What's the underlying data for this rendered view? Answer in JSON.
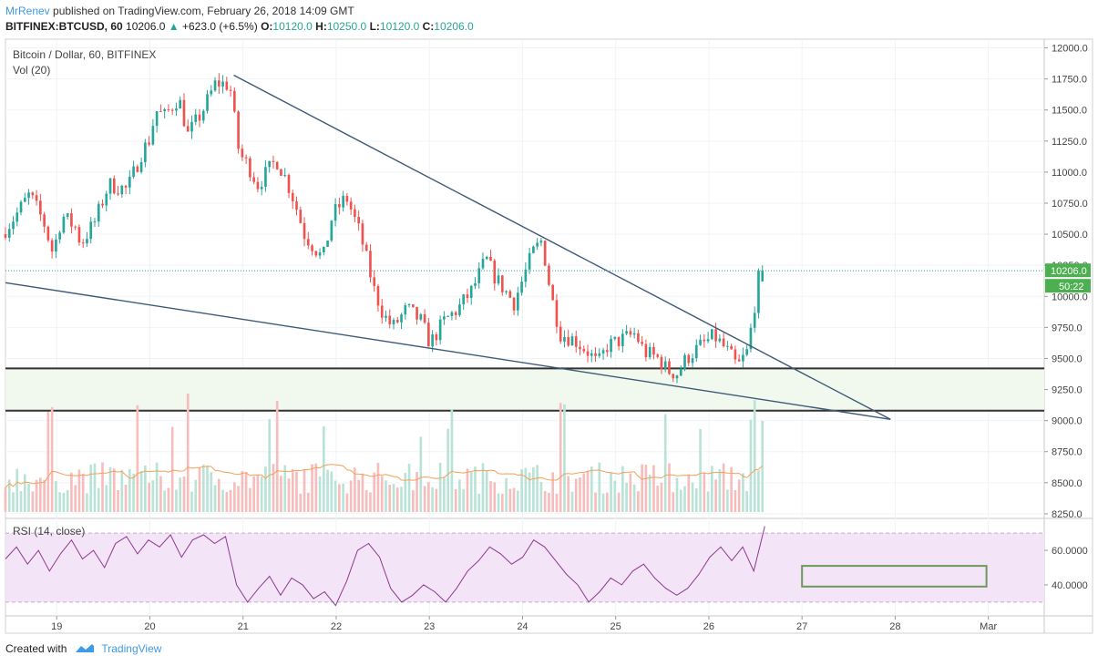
{
  "header": {
    "author": "MrRenev",
    "published_text": "published on TradingView.com, February 26, 2018 14:09 GMT",
    "symbol": "BITFINEX:BTCUSD, 60",
    "last": "10206.0",
    "change": "+623.0 (+6.5%)",
    "o_label": "O:",
    "o": "10120.0",
    "h_label": "H:",
    "h": "10250.0",
    "l_label": "L:",
    "l": "10120.0",
    "c_label": "C:",
    "c": "10206.0"
  },
  "footer": {
    "created_with": "Created with",
    "brand": "TradingView"
  },
  "colors": {
    "up": "#26a69a",
    "down": "#ef5350",
    "trendline": "#3c5a78",
    "support": "#333333",
    "zone": "#f1f8ee",
    "rsi_line": "#8e3a8e",
    "rsi_band": "#f3e4f7",
    "volume_ma": "#f5a05a",
    "price_badge": "#4caf50"
  },
  "chart_data": [
    {
      "type": "candlestick",
      "title": "Bitcoin / Dollar, 60, BITFINEX",
      "subtitle": "Vol (20)",
      "y_ticks": [
        8250,
        8500,
        8750,
        9000,
        9250,
        9500,
        9750,
        10000,
        10250,
        10500,
        10750,
        11000,
        11250,
        11500,
        11750,
        12000
      ],
      "y_tick_labels": [
        "8250.0",
        "8500.0",
        "8750.0",
        "9000.0",
        "9250.0",
        "9500.0",
        "9750.0",
        "10000.0",
        "10250.0",
        "10500.0",
        "10750.0",
        "11000.0",
        "11250.0",
        "11500.0",
        "11750.0",
        "12000.0"
      ],
      "ylim": [
        8220,
        12070
      ],
      "x_ticks": [
        "19",
        "20",
        "21",
        "22",
        "23",
        "24",
        "25",
        "26",
        "27",
        "28",
        "Mar"
      ],
      "x_tick_days": [
        19,
        20,
        21,
        22,
        23,
        24,
        25,
        26,
        27,
        28,
        29
      ],
      "xlim_days": [
        18.45,
        29.6
      ],
      "price_path": [
        [
          18.45,
          10500
        ],
        [
          18.6,
          10650
        ],
        [
          18.75,
          10820
        ],
        [
          18.9,
          10600
        ],
        [
          19.0,
          10350
        ],
        [
          19.1,
          10650
        ],
        [
          19.25,
          10550
        ],
        [
          19.3,
          10420
        ],
        [
          19.45,
          10600
        ],
        [
          19.6,
          10900
        ],
        [
          19.8,
          10860
        ],
        [
          19.95,
          11150
        ],
        [
          20.05,
          11280
        ],
        [
          20.1,
          11500
        ],
        [
          20.2,
          11450
        ],
        [
          20.35,
          11600
        ],
        [
          20.45,
          11300
        ],
        [
          20.6,
          11480
        ],
        [
          20.75,
          11720
        ],
        [
          20.9,
          11700
        ],
        [
          21.0,
          11150
        ],
        [
          21.1,
          11050
        ],
        [
          21.2,
          10900
        ],
        [
          21.3,
          11000
        ],
        [
          21.4,
          11100
        ],
        [
          21.5,
          10950
        ],
        [
          21.6,
          10750
        ],
        [
          21.7,
          10500
        ],
        [
          21.8,
          10400
        ],
        [
          21.9,
          10300
        ],
        [
          22.0,
          10650
        ],
        [
          22.15,
          10800
        ],
        [
          22.3,
          10500
        ],
        [
          22.45,
          10050
        ],
        [
          22.55,
          9850
        ],
        [
          22.65,
          9750
        ],
        [
          22.8,
          9900
        ],
        [
          22.95,
          9800
        ],
        [
          23.05,
          9620
        ],
        [
          23.2,
          9800
        ],
        [
          23.35,
          9900
        ],
        [
          23.5,
          10050
        ],
        [
          23.65,
          10300
        ],
        [
          23.75,
          10150
        ],
        [
          23.85,
          10050
        ],
        [
          23.95,
          9950
        ],
        [
          24.05,
          10150
        ],
        [
          24.15,
          10350
        ],
        [
          24.25,
          10450
        ],
        [
          24.35,
          10000
        ],
        [
          24.45,
          9700
        ],
        [
          24.6,
          9650
        ],
        [
          24.75,
          9550
        ],
        [
          24.85,
          9450
        ],
        [
          24.95,
          9600
        ],
        [
          25.1,
          9650
        ],
        [
          25.25,
          9700
        ],
        [
          25.35,
          9550
        ],
        [
          25.5,
          9500
        ],
        [
          25.6,
          9400
        ],
        [
          25.7,
          9380
        ],
        [
          25.8,
          9500
        ],
        [
          25.95,
          9600
        ],
        [
          26.1,
          9680
        ],
        [
          26.25,
          9550
        ],
        [
          26.35,
          9430
        ],
        [
          26.45,
          9550
        ],
        [
          26.52,
          9850
        ],
        [
          26.56,
          10100
        ],
        [
          26.6,
          10206
        ]
      ],
      "last_value": "10206.0",
      "countdown": "50:22",
      "trendlines": [
        {
          "name": "descending-resistance",
          "from": [
            20.9,
            11780
          ],
          "to": [
            27.95,
            9010
          ]
        },
        {
          "name": "descending-support",
          "from": [
            18.45,
            10110
          ],
          "to": [
            27.95,
            9010
          ]
        }
      ],
      "horizontal_levels": [
        9420,
        9080
      ]
    },
    {
      "type": "line",
      "title": "RSI (14, close)",
      "y_ticks": [
        40,
        60
      ],
      "y_tick_labels": [
        "40.0000",
        "60.0000"
      ],
      "ylim": [
        22,
        78
      ],
      "bands": [
        30,
        70
      ],
      "values": [
        55,
        62,
        52,
        60,
        48,
        58,
        66,
        55,
        60,
        50,
        64,
        68,
        58,
        66,
        62,
        69,
        56,
        66,
        69,
        64,
        68,
        40,
        30,
        38,
        45,
        34,
        44,
        40,
        32,
        36,
        28,
        42,
        60,
        64,
        56,
        38,
        30,
        34,
        40,
        36,
        30,
        38,
        48,
        54,
        62,
        58,
        52,
        56,
        66,
        62,
        54,
        46,
        40,
        30,
        36,
        44,
        40,
        48,
        52,
        44,
        38,
        34,
        38,
        46,
        56,
        62,
        54,
        62,
        48,
        74
      ],
      "rectangle": {
        "x_days": [
          27.0,
          28.98
        ],
        "y": [
          39,
          51
        ]
      }
    }
  ]
}
